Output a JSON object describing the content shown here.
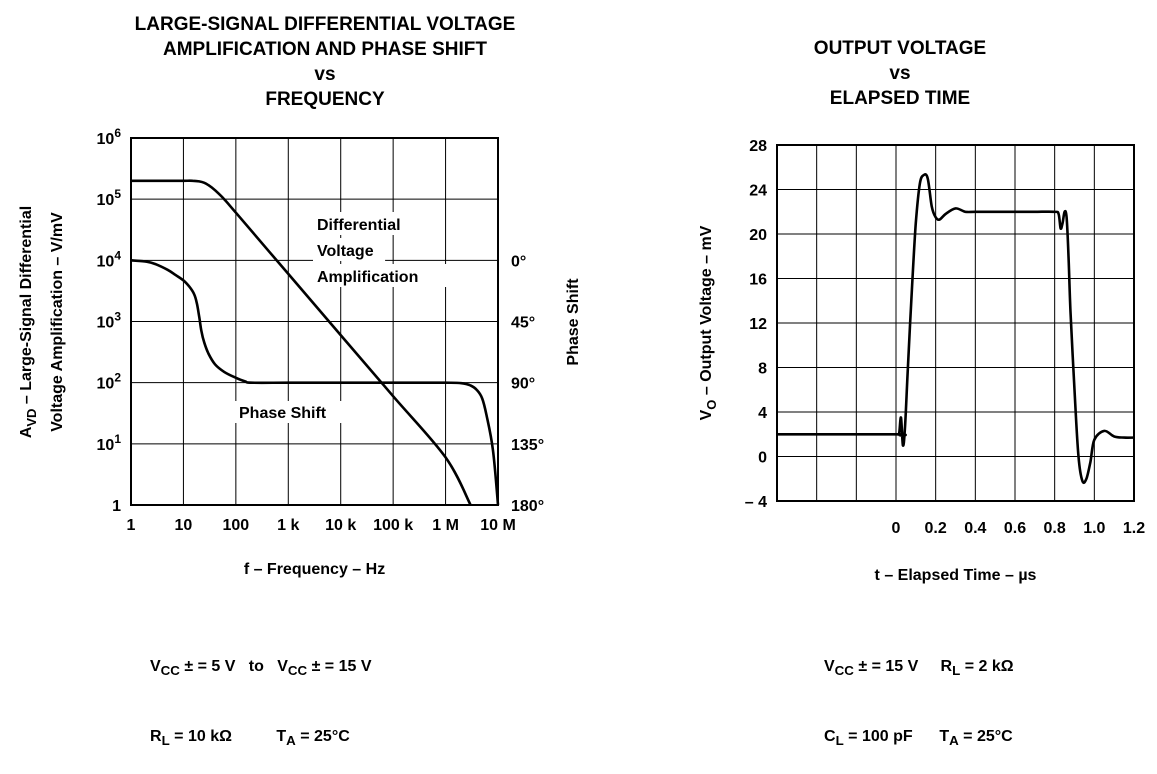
{
  "colors": {
    "ink": "#000000",
    "background": "#ffffff"
  },
  "left_title": [
    "LARGE-SIGNAL DIFFERENTIAL VOLTAGE",
    "AMPLIFICATION AND PHASE SHIFT",
    "vs",
    "FREQUENCY"
  ],
  "right_title": [
    "OUTPUT VOLTAGE",
    "vs",
    "ELAPSED TIME"
  ],
  "left_conditions": [
    [
      "V",
      "CC",
      " ± = 5 V   to   V",
      "CC",
      " ± = 15 V"
    ],
    [
      "R",
      "L",
      " = 10 kΩ          T",
      "A",
      " = 25°C"
    ]
  ],
  "right_conditions": [
    [
      "V",
      "CC",
      " ± = 15 V     R",
      "L",
      " = 2 kΩ"
    ],
    [
      "C",
      "L",
      " = 100 pF      T",
      "A",
      " = 25°C"
    ]
  ],
  "chart_data": [
    {
      "type": "line",
      "title": "LARGE-SIGNAL DIFFERENTIAL VOLTAGE AMPLIFICATION AND PHASE SHIFT vs FREQUENCY",
      "xlabel": "f – Frequency – Hz",
      "ylabel_line1": "A_VD – Large-Signal Differential",
      "ylabel_line2": "Voltage Amplification – V/mV",
      "ylabel_sub": "VD",
      "y2label": "Phase Shift",
      "x_scale": "log",
      "xlim": [
        1,
        10000000
      ],
      "y_scale": "log",
      "ylim": [
        1,
        1000000
      ],
      "grid": true,
      "x_ticks": [
        {
          "value": 1,
          "label": "1"
        },
        {
          "value": 10,
          "label": "10"
        },
        {
          "value": 100,
          "label": "100"
        },
        {
          "value": 1000,
          "label": "1 k"
        },
        {
          "value": 10000,
          "label": "10 k"
        },
        {
          "value": 100000,
          "label": "100 k"
        },
        {
          "value": 1000000,
          "label": "1 M"
        },
        {
          "value": 10000000,
          "label": "10 M"
        }
      ],
      "y_ticks": [
        {
          "value": 1,
          "label": "1",
          "exp": ""
        },
        {
          "value": 10,
          "label": "10",
          "exp": "1"
        },
        {
          "value": 100,
          "label": "10",
          "exp": "2"
        },
        {
          "value": 1000,
          "label": "10",
          "exp": "3"
        },
        {
          "value": 10000,
          "label": "10",
          "exp": "4"
        },
        {
          "value": 100000,
          "label": "10",
          "exp": "5"
        },
        {
          "value": 1000000,
          "label": "10",
          "exp": "6"
        }
      ],
      "y2_ticks": [
        {
          "value": "0°",
          "at": 10000
        },
        {
          "value": "45°",
          "at": 1000
        },
        {
          "value": "90°",
          "at": 100
        },
        {
          "value": "135°",
          "at": 10
        },
        {
          "value": "180°",
          "at": 1
        }
      ],
      "series": [
        {
          "name": "Differential Voltage Amplification",
          "label_lines": [
            "Differential",
            "Voltage",
            "Amplification"
          ],
          "x": [
            1,
            5,
            10,
            15,
            20,
            25,
            30,
            40,
            60,
            100,
            1000,
            10000,
            100000,
            1000000,
            3000000
          ],
          "y": [
            200000,
            200000,
            200000,
            200000,
            195000,
            185000,
            170000,
            140000,
            100000,
            60000,
            6000,
            600,
            60,
            6,
            1
          ]
        },
        {
          "name": "Phase Shift",
          "label_lines": [
            "Phase Shift"
          ],
          "x": [
            1,
            2,
            3,
            5,
            7,
            10,
            13,
            16,
            18,
            20,
            22,
            25,
            30,
            40,
            60,
            100,
            150,
            200,
            1000,
            10000,
            100000,
            1000000,
            2000000,
            3000000,
            4000000,
            5000000,
            6000000,
            8000000,
            10000000
          ],
          "y": [
            10000,
            9500,
            8600,
            7000,
            5800,
            4700,
            3700,
            2800,
            2000,
            1200,
            700,
            450,
            300,
            200,
            150,
            120,
            105,
            100,
            100,
            100,
            100,
            100,
            98,
            90,
            75,
            55,
            30,
            8,
            1
          ]
        }
      ]
    },
    {
      "type": "line",
      "title": "OUTPUT VOLTAGE vs ELAPSED TIME",
      "xlabel": "t – Elapsed Time – µs",
      "ylabel": "V_O – Output Voltage – mV",
      "ylabel_sub": "O",
      "xlim": [
        -0.6,
        1.2
      ],
      "ylim": [
        -4,
        28
      ],
      "grid": true,
      "x_ticks": [
        {
          "value": 0,
          "label": "0"
        },
        {
          "value": 0.2,
          "label": "0.2"
        },
        {
          "value": 0.4,
          "label": "0.4"
        },
        {
          "value": 0.6,
          "label": "0.6"
        },
        {
          "value": 0.8,
          "label": "0.8"
        },
        {
          "value": 1.0,
          "label": "1.0"
        },
        {
          "value": 1.2,
          "label": "1.2"
        }
      ],
      "y_ticks": [
        {
          "value": -4,
          "label": "– 4"
        },
        {
          "value": 0,
          "label": "0"
        },
        {
          "value": 4,
          "label": "4"
        },
        {
          "value": 8,
          "label": "8"
        },
        {
          "value": 12,
          "label": "12"
        },
        {
          "value": 16,
          "label": "16"
        },
        {
          "value": 20,
          "label": "20"
        },
        {
          "value": 24,
          "label": "24"
        },
        {
          "value": 28,
          "label": "28"
        }
      ],
      "series": [
        {
          "x": [
            -0.6,
            0.0,
            0.015,
            0.025,
            0.035,
            0.045,
            0.06,
            0.08,
            0.1,
            0.12,
            0.14,
            0.16,
            0.18,
            0.2,
            0.22,
            0.25,
            0.3,
            0.35,
            0.4,
            0.5,
            0.6,
            0.7,
            0.8,
            0.82,
            0.83,
            0.84,
            0.85,
            0.86,
            0.87,
            0.88,
            0.9,
            0.92,
            0.94,
            0.96,
            0.98,
            1.0,
            1.05,
            1.1,
            1.15,
            1.2
          ],
          "y": [
            2,
            2,
            2,
            3.5,
            1,
            2.5,
            8,
            15,
            21,
            24.5,
            25.3,
            25,
            22.5,
            21.5,
            21.3,
            21.8,
            22.3,
            22,
            22,
            22,
            22,
            22,
            22,
            21.8,
            20.5,
            21,
            22,
            21.5,
            18,
            13,
            6,
            0,
            -2.2,
            -2,
            -0.5,
            1.5,
            2.3,
            1.8,
            1.7,
            1.7
          ]
        }
      ]
    }
  ]
}
